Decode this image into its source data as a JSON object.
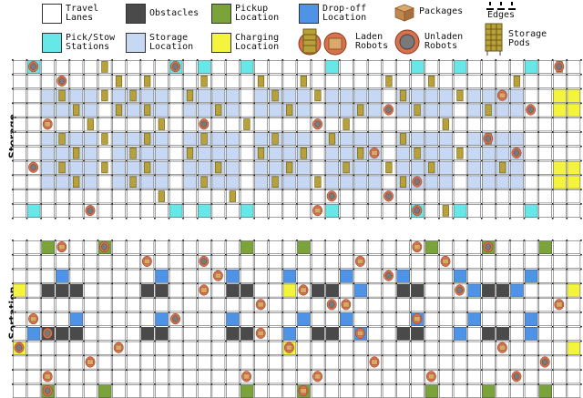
{
  "legend": {
    "travel_lanes": "Travel\nLanes",
    "obstacles": "Obstacles",
    "pickup_location": "Pickup\nLocation",
    "dropoff_location": "Drop-off\nLocation",
    "packages": "Packages",
    "edges": "Edges",
    "pick_stow_stations": "Pick/Stow\nStations",
    "storage_location": "Storage\nLocation",
    "charging_location": "Charging\nLocation",
    "laden_robots": "Laden\nRobots",
    "unladen_robots": "Unladen\nRobots",
    "storage_pods": "Storage\nPods"
  },
  "sections": {
    "storage": "Storage",
    "sortation": "Sortation"
  },
  "colors": {
    "travel": "#ffffff",
    "obstacle": "#4a4a4a",
    "pickup": "#7aa33a",
    "dropoff": "#4f93e6",
    "station": "#66e8e8",
    "storage": "#c6d8f4",
    "charging": "#f4f43c",
    "pod": "#b8a13a",
    "robot_body": "#d9704e",
    "robot_top": "#7a7a7a"
  }
}
